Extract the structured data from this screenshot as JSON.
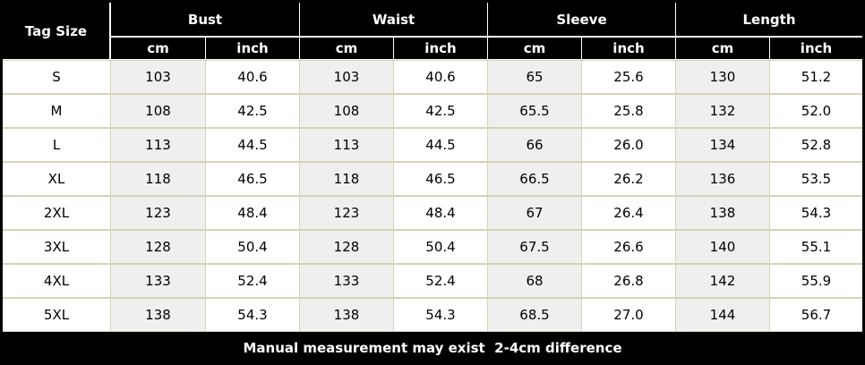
{
  "table": {
    "header": {
      "tag_size": "Tag Size",
      "groups": [
        "Bust",
        "Waist",
        "Sleeve",
        "Length"
      ],
      "units": [
        "cm",
        "inch",
        "cm",
        "inch",
        "cm",
        "inch",
        "cm",
        "inch"
      ]
    },
    "rows": [
      [
        "S",
        "103",
        "40.6",
        "103",
        "40.6",
        "65",
        "25.6",
        "130",
        "51.2"
      ],
      [
        "M",
        "108",
        "42.5",
        "108",
        "42.5",
        "65.5",
        "25.8",
        "132",
        "52.0"
      ],
      [
        "L",
        "113",
        "44.5",
        "113",
        "44.5",
        "66",
        "26.0",
        "134",
        "52.8"
      ],
      [
        "XL",
        "118",
        "46.5",
        "118",
        "46.5",
        "66.5",
        "26.2",
        "136",
        "53.5"
      ],
      [
        "2XL",
        "123",
        "48.4",
        "123",
        "48.4",
        "67",
        "26.4",
        "138",
        "54.3"
      ],
      [
        "3XL",
        "128",
        "50.4",
        "128",
        "50.4",
        "67.5",
        "26.6",
        "140",
        "55.1"
      ],
      [
        "4XL",
        "133",
        "52.4",
        "133",
        "52.4",
        "68",
        "26.8",
        "142",
        "55.9"
      ],
      [
        "5XL",
        "138",
        "54.3",
        "138",
        "54.3",
        "68.5",
        "27.0",
        "144",
        "56.7"
      ]
    ],
    "footer": "Manual measurement may exist  2-4cm difference"
  }
}
